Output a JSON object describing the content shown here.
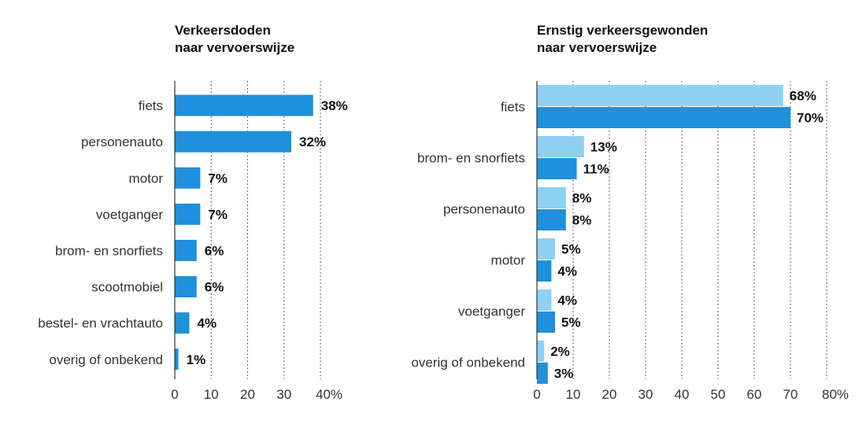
{
  "chart_data": [
    {
      "type": "bar",
      "orientation": "horizontal",
      "title": "Verkeersdoden naar vervoerswijze",
      "title_lines": [
        "Verkeersdoden",
        "naar vervoerswijze"
      ],
      "categories": [
        "fiets",
        "personenauto",
        "motor",
        "voetganger",
        "brom- en snorfiets",
        "scootmobiel",
        "bestel- en vrachtauto",
        "overig of onbekend"
      ],
      "series": [
        {
          "values": [
            38,
            32,
            7,
            7,
            6,
            6,
            4,
            1
          ],
          "labels": [
            "38%",
            "32%",
            "7%",
            "7%",
            "6%",
            "6%",
            "4%",
            "1%"
          ],
          "color": "#1e90dc"
        }
      ],
      "xlim": [
        0,
        40
      ],
      "ticks": [
        0,
        10,
        20,
        30,
        40
      ],
      "tick_labels": [
        "0",
        "10",
        "20",
        "30",
        "40%"
      ],
      "grid": true
    },
    {
      "type": "bar",
      "orientation": "horizontal",
      "title": "Ernstig verkeersgewonden naar vervoerswijze",
      "title_lines": [
        "Ernstig verkeersgewonden",
        "naar vervoerswijze"
      ],
      "categories": [
        "fiets",
        "brom- en snorfiets",
        "personenauto",
        "motor",
        "voetganger",
        "overig of onbekend"
      ],
      "series": [
        {
          "values": [
            68,
            13,
            8,
            5,
            4,
            2
          ],
          "labels": [
            "68%",
            "13%",
            "8%",
            "5%",
            "4%",
            "2%"
          ],
          "color": "#8fd0f5"
        },
        {
          "values": [
            70,
            11,
            8,
            4,
            5,
            3
          ],
          "labels": [
            "70%",
            "11%",
            "8%",
            "4%",
            "5%",
            "3%"
          ],
          "color": "#1e90dc"
        }
      ],
      "xlim": [
        0,
        80
      ],
      "ticks": [
        0,
        10,
        20,
        30,
        40,
        50,
        60,
        70,
        80
      ],
      "tick_labels": [
        "0",
        "10",
        "20",
        "30",
        "40",
        "50",
        "60",
        "70",
        "80%"
      ],
      "grid": true
    }
  ]
}
